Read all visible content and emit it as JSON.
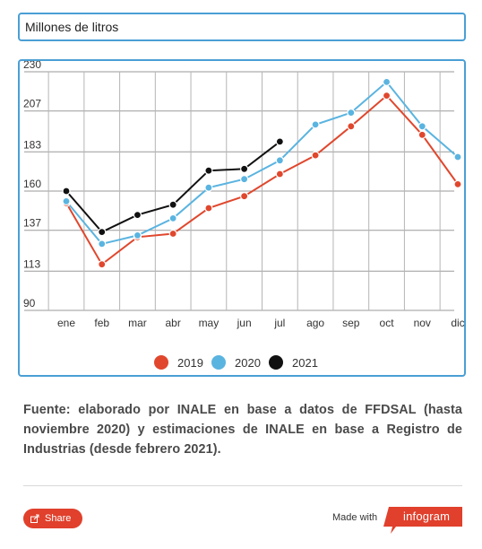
{
  "header": {
    "title": "Millones de litros"
  },
  "chart_data": {
    "type": "line",
    "categories": [
      "ene",
      "feb",
      "mar",
      "abr",
      "may",
      "jun",
      "jul",
      "ago",
      "sep",
      "oct",
      "nov",
      "dic"
    ],
    "y_ticks": [
      "230",
      "207",
      "183",
      "160",
      "137",
      "113",
      "90"
    ],
    "ylim": [
      90,
      230
    ],
    "grid": true,
    "legend_position": "bottom",
    "series": [
      {
        "name": "2019",
        "color": "#e0472d",
        "values": [
          153,
          117,
          133,
          135,
          150,
          157,
          170,
          181,
          198,
          216,
          193,
          164
        ]
      },
      {
        "name": "2020",
        "color": "#5ab4e0",
        "values": [
          154,
          129,
          134,
          144,
          162,
          167,
          178,
          199,
          206,
          224,
          198,
          180
        ]
      },
      {
        "name": "2021",
        "color": "#111111",
        "values": [
          160,
          136,
          146,
          152,
          172,
          173,
          189,
          null,
          null,
          null,
          null,
          null
        ]
      }
    ]
  },
  "footer": {
    "source_text": "Fuente: elaborado por INALE en base a datos de FFDSAL (hasta noviembre 2020) y estimaciones de INALE en base a Registro de Industrias (desde febrero 2021).",
    "share_label": "Share",
    "made_with_label": "Made with",
    "brand_label": "infogram"
  },
  "colors": {
    "accent": "#4a9fd5",
    "brand_red": "#e0402c"
  }
}
